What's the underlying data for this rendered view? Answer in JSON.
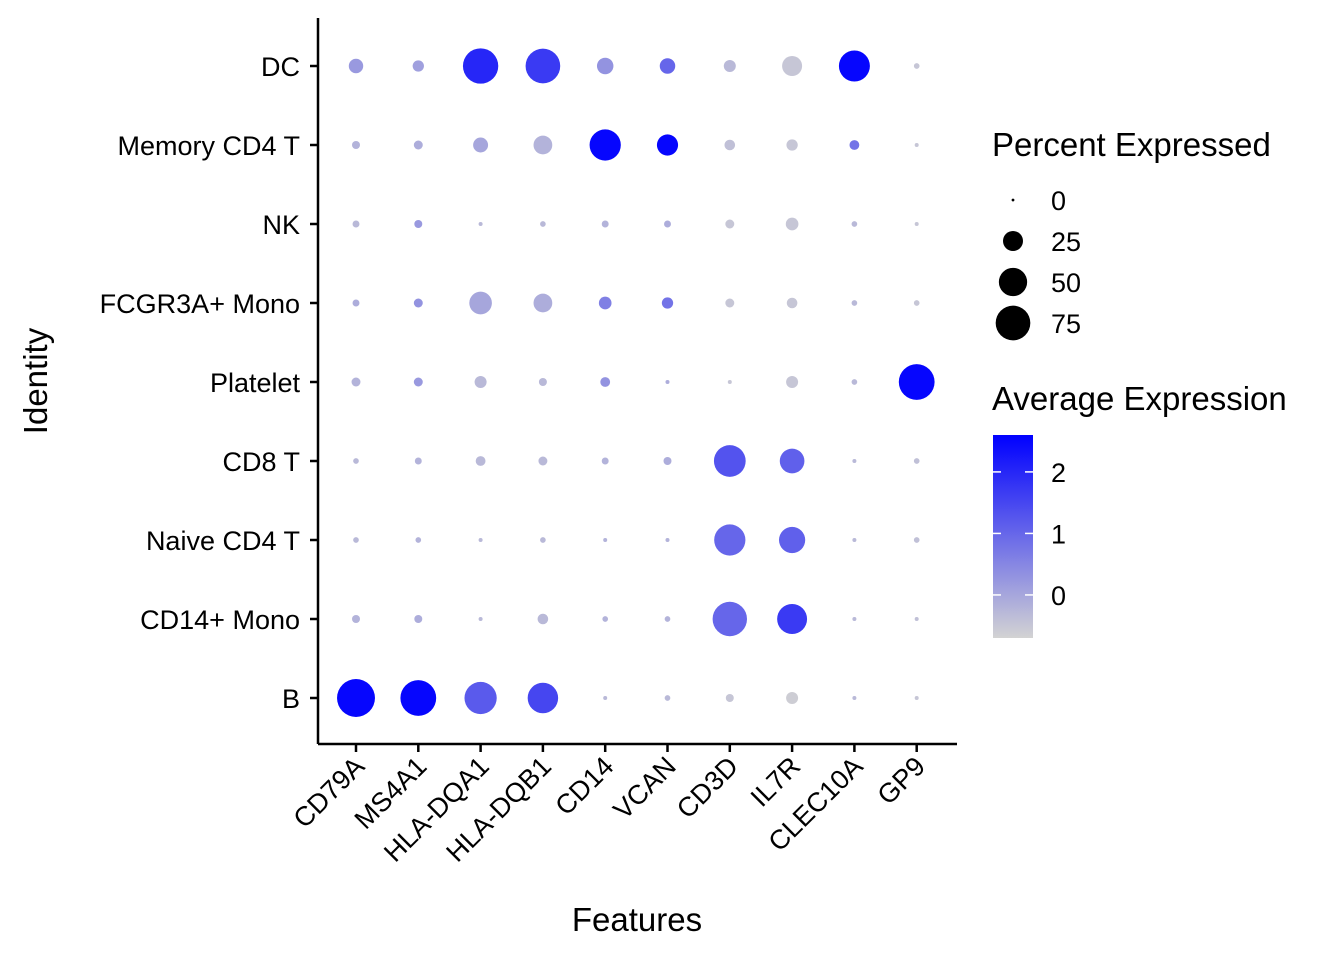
{
  "chart_data": {
    "type": "dotplot",
    "xlabel": "Features",
    "ylabel": "Identity",
    "features": [
      "CD79A",
      "MS4A1",
      "HLA-DQA1",
      "HLA-DQB1",
      "CD14",
      "VCAN",
      "CD3D",
      "IL7R",
      "CLEC10A",
      "GP9"
    ],
    "identities": [
      "DC",
      "Memory CD4 T",
      "NK",
      "FCGR3A+ Mono",
      "Platelet",
      "CD8 T",
      "Naive CD4 T",
      "CD14+ Mono",
      "B"
    ],
    "percent_expressed": [
      [
        13,
        8,
        78,
        75,
        17,
        15,
        9,
        25,
        60,
        2
      ],
      [
        4,
        5,
        14,
        22,
        61,
        28,
        7,
        8,
        6,
        1
      ],
      [
        3,
        4,
        1,
        2,
        3,
        3,
        5,
        10,
        2,
        1
      ],
      [
        3,
        5,
        32,
        22,
        10,
        8,
        5,
        7,
        2,
        2
      ],
      [
        5,
        5,
        9,
        4,
        6,
        1,
        1,
        9,
        2,
        80
      ],
      [
        2,
        3,
        6,
        5,
        3,
        4,
        63,
        38,
        1,
        2
      ],
      [
        2,
        2,
        1,
        2,
        1,
        1,
        61,
        43,
        1,
        2
      ],
      [
        4,
        4,
        1,
        7,
        2,
        2,
        74,
        56,
        1,
        1
      ],
      [
        90,
        80,
        65,
        58,
        1,
        2,
        4,
        9,
        1,
        1
      ]
    ],
    "average_expression": [
      [
        0.2,
        0.1,
        2.0,
        1.7,
        0.3,
        1.0,
        -0.3,
        -0.5,
        2.5,
        -0.5
      ],
      [
        -0.2,
        -0.1,
        0.0,
        -0.2,
        2.5,
        2.5,
        -0.4,
        -0.5,
        0.8,
        -0.5
      ],
      [
        -0.3,
        0.2,
        -0.3,
        -0.3,
        -0.2,
        -0.1,
        -0.5,
        -0.5,
        -0.3,
        -0.5
      ],
      [
        -0.1,
        0.3,
        0.0,
        -0.1,
        0.6,
        0.8,
        -0.5,
        -0.5,
        -0.3,
        -0.5
      ],
      [
        -0.2,
        0.2,
        -0.3,
        -0.3,
        0.3,
        -0.1,
        -0.5,
        -0.5,
        -0.3,
        2.5
      ],
      [
        -0.3,
        -0.2,
        -0.3,
        -0.3,
        -0.2,
        -0.1,
        1.3,
        1.1,
        -0.3,
        -0.4
      ],
      [
        -0.3,
        -0.2,
        -0.3,
        -0.3,
        -0.2,
        -0.2,
        1.0,
        1.1,
        -0.3,
        -0.4
      ],
      [
        -0.2,
        -0.1,
        -0.3,
        -0.3,
        -0.2,
        -0.2,
        1.0,
        1.7,
        -0.3,
        -0.4
      ],
      [
        2.5,
        2.5,
        1.2,
        1.5,
        -0.3,
        -0.3,
        -0.5,
        -0.6,
        -0.3,
        -0.5
      ]
    ],
    "color_scale": {
      "low": "#d3d3d3",
      "high": "#0000ff",
      "min": -0.7,
      "max": 2.6
    },
    "legend": {
      "size_title": "Percent Expressed",
      "size_breaks": [
        0,
        25,
        50,
        75
      ],
      "size_labels": [
        "0",
        "25",
        "50",
        "75"
      ],
      "color_title": "Average Expression",
      "color_breaks": [
        0,
        1,
        2
      ],
      "color_labels": [
        "0",
        "1",
        "2"
      ],
      "placement": "right"
    },
    "grid": false
  }
}
